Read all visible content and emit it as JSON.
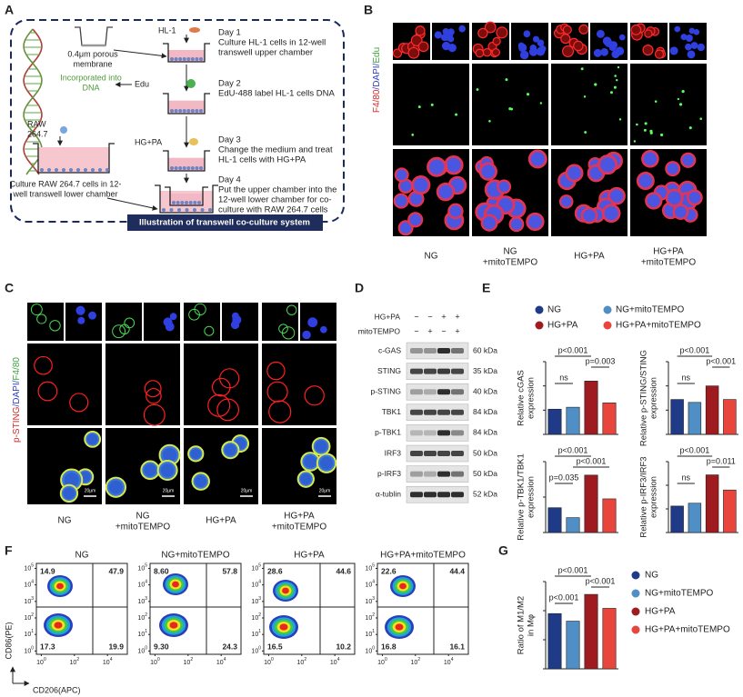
{
  "panel_a": {
    "letter": "A",
    "membrane": [
      "0.4μm porous",
      "membrane"
    ],
    "incorporated": [
      "Incorporated into",
      "DNA"
    ],
    "hl1": "HL-1",
    "edu": "Edu",
    "raw": [
      "RAW",
      "264.7"
    ],
    "hgpa": "HG+PA",
    "raw_culture": [
      "Culture RAW 264.7 cells in 12-",
      "well transwell lower chamber"
    ],
    "steps": [
      [
        "Day 1",
        "Culture HL-1 cells in 12-well",
        "transwell upper chamber"
      ],
      [
        "Day 2",
        "EdU-488 label HL-1 cells DNA"
      ],
      [
        "Day 3",
        "Change the medium and treat",
        "HL-1 cells with HG+PA"
      ],
      [
        "Day 4",
        "Put the upper chamber into the",
        "12-well lower chamber for co-",
        "culture with RAW 264.7 cells"
      ]
    ],
    "caption": "Illustration of transwell co-culture system"
  },
  "panel_b": {
    "letter": "B",
    "stain": [
      "F4/80",
      "/DAPI/",
      "Edu"
    ],
    "groups": [
      [
        "NG"
      ],
      [
        "NG",
        "+mitoTEMPO"
      ],
      [
        "HG+PA"
      ],
      [
        "HG+PA",
        "+mitoTEMPO"
      ]
    ]
  },
  "panel_c": {
    "letter": "C",
    "stain": [
      "p-STING",
      "/DAPI/",
      "F4/80"
    ],
    "scale_bar": "20μm",
    "groups": [
      [
        "NG"
      ],
      [
        "NG",
        "+mitoTEMPO"
      ],
      [
        "HG+PA"
      ],
      [
        "HG+PA",
        "+mitoTEMPO"
      ]
    ]
  },
  "panel_d": {
    "letter": "D",
    "treatments": [
      {
        "name": "HG+PA",
        "signs": [
          "−",
          "−",
          "+",
          "+"
        ]
      },
      {
        "name": "mitoTEMPO",
        "signs": [
          "−",
          "+",
          "−",
          "+"
        ]
      }
    ],
    "bands": [
      {
        "name": "c-GAS",
        "size": "60 kDa"
      },
      {
        "name": "STING",
        "size": "35 kDa"
      },
      {
        "name": "p-STING",
        "size": "40 kDa"
      },
      {
        "name": "TBK1",
        "size": "84 kDa"
      },
      {
        "name": "p-TBK1",
        "size": "84 kDa"
      },
      {
        "name": "IRF3",
        "size": "50 kDa"
      },
      {
        "name": "p-IRF3",
        "size": "50 kDa"
      },
      {
        "name": "α-tublin",
        "size": "52 kDa"
      }
    ]
  },
  "panel_e": {
    "letter": "E",
    "legend": [
      {
        "name": "NG",
        "color": "#1f3b87"
      },
      {
        "name": "NG+mitoTEMPO",
        "color": "#4f8fc6"
      },
      {
        "name": "HG+PA",
        "color": "#9e1b20"
      },
      {
        "name": "HG+PA+mitoTEMPO",
        "color": "#e8453c"
      }
    ]
  },
  "panel_f": {
    "letter": "F",
    "ylabel": "CD86(PE)",
    "xlabel": "CD206(APC)",
    "xlim": [
      -0.3,
      5.2
    ],
    "ylim": [
      -0.2,
      5.3
    ],
    "yticks": [
      {
        "value": 0,
        "label": "10"
      },
      {
        "value": 1,
        "label": "10"
      },
      {
        "value": 2,
        "label": "10"
      },
      {
        "value": 3,
        "label": "10"
      },
      {
        "value": 4,
        "label": "10"
      },
      {
        "value": 5,
        "label": "10"
      }
    ],
    "xticks": [
      {
        "value": 0,
        "label": "10"
      },
      {
        "value": 2,
        "label": "10"
      },
      {
        "value": 4,
        "label": "10"
      }
    ],
    "plots": [
      {
        "title": "NG",
        "quadrants": [
          "14.9",
          "47.9",
          "17.3",
          "19.9"
        ]
      },
      {
        "title": "NG+mitoTEMPO",
        "quadrants": [
          "8.60",
          "57.8",
          "9.30",
          "24.3"
        ]
      },
      {
        "title": "HG+PA",
        "quadrants": [
          "28.6",
          "44.6",
          "16.5",
          "10.2"
        ]
      },
      {
        "title": "HG+PA+mitoTEMPO",
        "quadrants": [
          "22.6",
          "44.4",
          "16.8",
          "16.1"
        ]
      }
    ]
  },
  "panel_g": {
    "letter": "G",
    "legend": [
      {
        "name": "NG",
        "color": "#1f3b87"
      },
      {
        "name": "NG+mitoTEMPO",
        "color": "#4f8fc6"
      },
      {
        "name": "HG+PA",
        "color": "#9e1b20"
      },
      {
        "name": "HG+PA+mitoTEMPO",
        "color": "#e8453c"
      }
    ]
  },
  "chart_data": [
    {
      "type": "bar",
      "ylabel": [
        "Relative cGAS",
        "expression"
      ],
      "values": [
        0.52,
        0.56,
        1.1,
        0.65
      ],
      "ylim": [
        0,
        1.5
      ],
      "yticks": [
        0,
        0.5,
        1,
        1.5
      ],
      "annotations": [
        "p<0.001",
        "ns",
        "p=0.003"
      ]
    },
    {
      "type": "bar",
      "ylabel": [
        "Relative p-STING/STING",
        "expression"
      ],
      "values": [
        0.72,
        0.66,
        1.0,
        0.72
      ],
      "ylim": [
        0,
        1.5
      ],
      "yticks": [
        0,
        0.5,
        1,
        1.5
      ],
      "annotations": [
        "p<0.001",
        "ns",
        "p<0.001"
      ]
    },
    {
      "type": "bar",
      "ylabel": [
        "Relative p-TBK1/TBK1",
        "expression"
      ],
      "values": [
        0.7,
        0.42,
        1.62,
        0.95
      ],
      "ylim": [
        0,
        2
      ],
      "yticks": [
        0,
        1,
        2
      ],
      "annotations": [
        "p<0.001",
        "p=0.035",
        "p<0.001"
      ]
    },
    {
      "type": "bar",
      "ylabel": [
        "Relative p-IRF3/IRF3",
        "expression"
      ],
      "values": [
        0.56,
        0.62,
        1.22,
        0.9
      ],
      "ylim": [
        0,
        1.5
      ],
      "yticks": [
        0,
        0.5,
        1,
        1.5
      ],
      "annotations": [
        "p<0.001",
        "ns",
        "p=0.011"
      ]
    },
    {
      "type": "bar",
      "ylabel": [
        "Ratio of M1/M2",
        "in Mφ"
      ],
      "values": [
        0.95,
        0.82,
        1.28,
        1.04
      ],
      "ylim": [
        0,
        1.5
      ],
      "yticks": [
        0,
        0.5,
        1,
        1.5
      ],
      "annotations": [
        "p<0.001",
        "p<0.001",
        "p<0.001"
      ]
    }
  ]
}
